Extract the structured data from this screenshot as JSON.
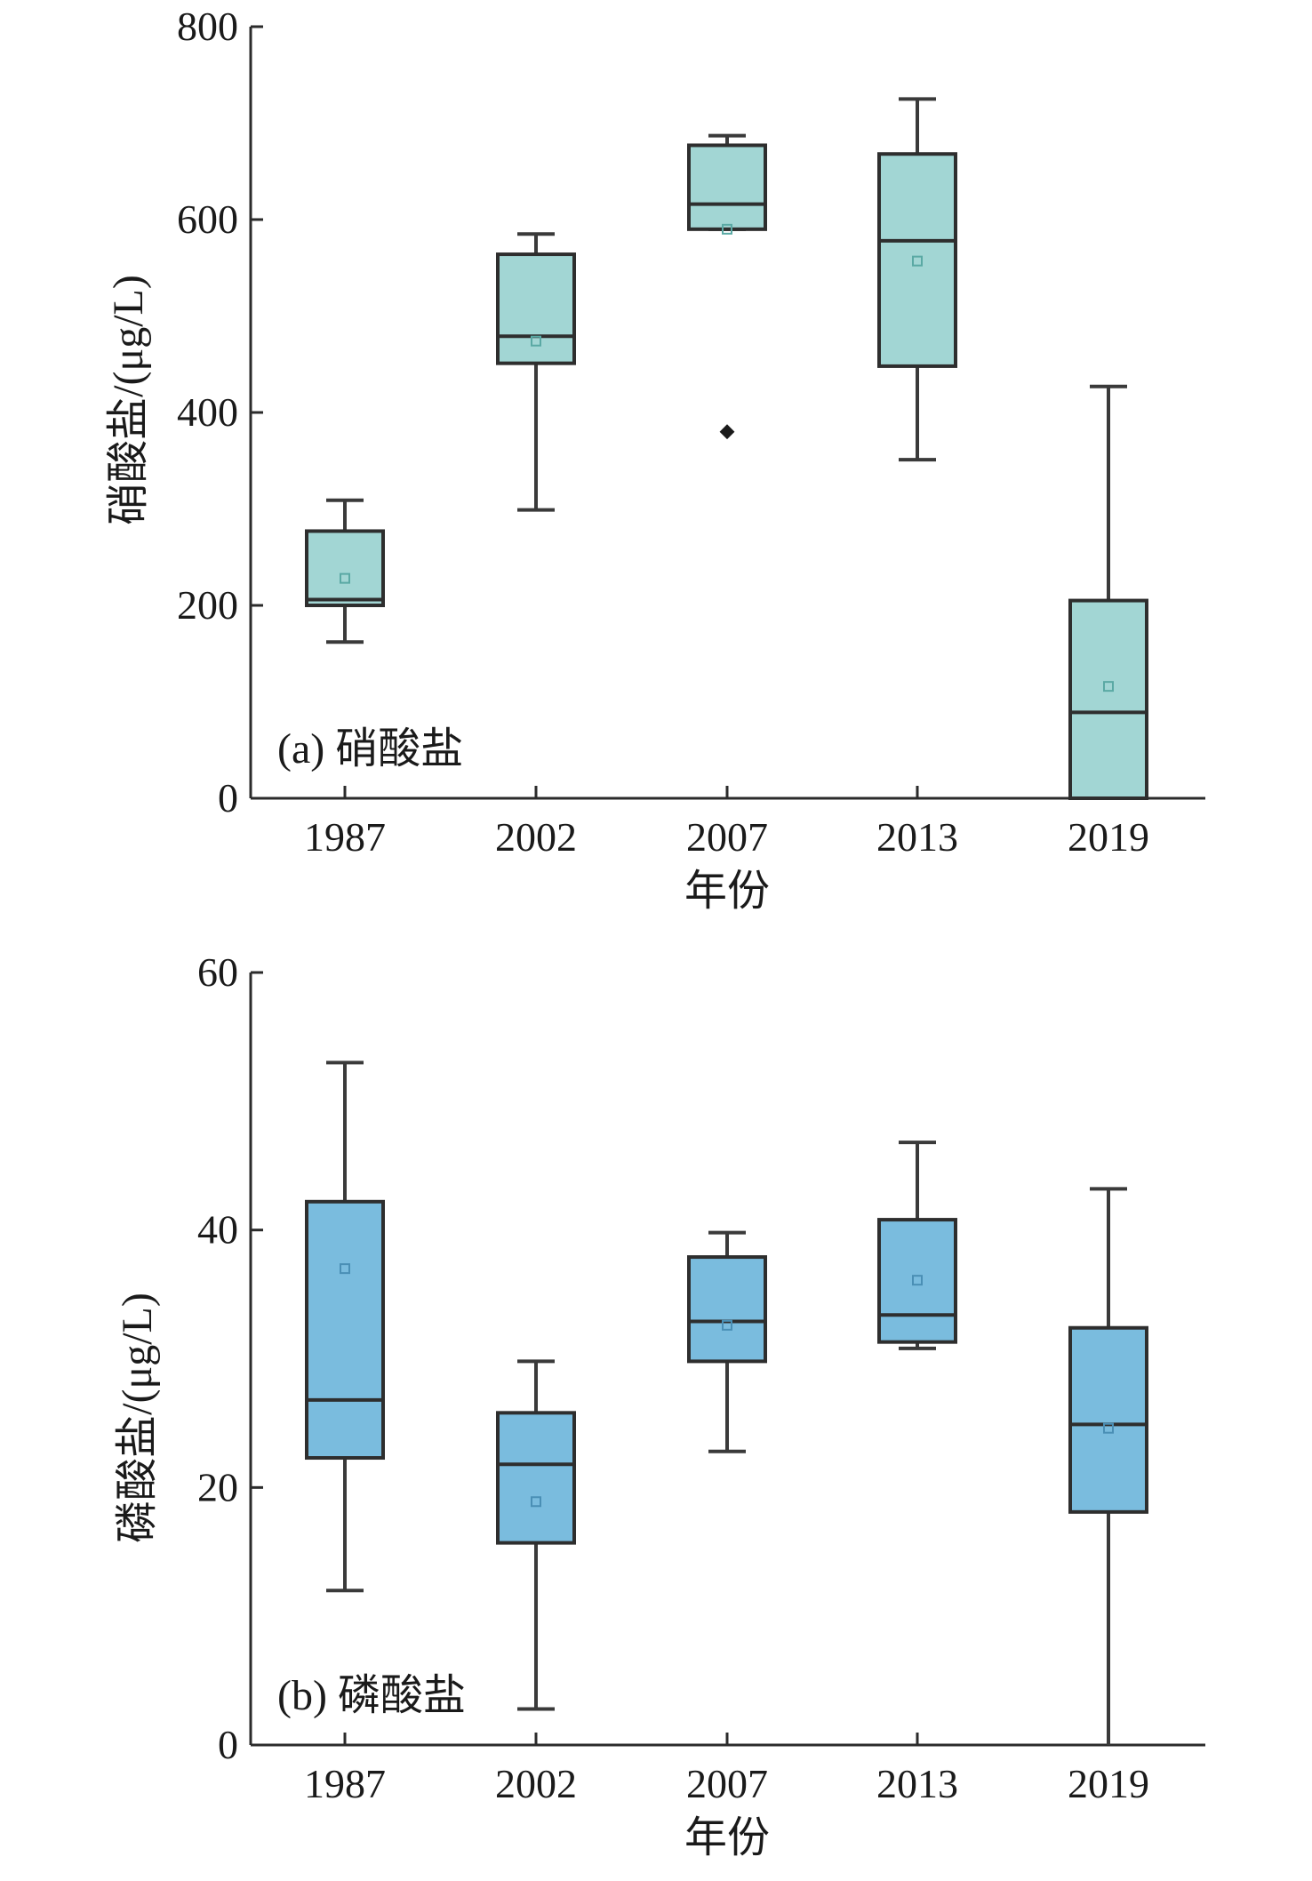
{
  "chart_data": [
    {
      "type": "box",
      "panel_label": "(a) 硝酸盐",
      "xlabel": "年份",
      "ylabel": "硝酸盐/(μg/L)",
      "ylim": [
        0,
        800
      ],
      "yticks": [
        0,
        200,
        400,
        600,
        800
      ],
      "categories": [
        "1987",
        "2002",
        "2007",
        "2013",
        "2019"
      ],
      "box_color": "#a2d6d4",
      "mean_color": "#5aa9a4",
      "boxes": [
        {
          "category": "1987",
          "min": 162,
          "q1": 200,
          "median": 206,
          "q3": 277,
          "max": 309,
          "mean": 228,
          "outliers": []
        },
        {
          "category": "2002",
          "min": 299,
          "q1": 451,
          "median": 479,
          "q3": 564,
          "max": 585,
          "mean": 474,
          "outliers": []
        },
        {
          "category": "2007",
          "min": 590,
          "q1": 590,
          "median": 616,
          "q3": 677,
          "max": 687,
          "mean": 590,
          "outliers": [
            380
          ]
        },
        {
          "category": "2013",
          "min": 351,
          "q1": 448,
          "median": 578,
          "q3": 668,
          "max": 725,
          "mean": 557,
          "outliers": []
        },
        {
          "category": "2019",
          "min": 0,
          "q1": 0,
          "median": 89,
          "q3": 205,
          "max": 427,
          "mean": 116,
          "outliers": []
        }
      ]
    },
    {
      "type": "box",
      "panel_label": "(b) 磷酸盐",
      "xlabel": "年份",
      "ylabel": "磷酸盐/(μg/L)",
      "ylim": [
        0,
        60
      ],
      "yticks": [
        0,
        20,
        40,
        60
      ],
      "categories": [
        "1987",
        "2002",
        "2007",
        "2013",
        "2019"
      ],
      "box_color": "#7abcde",
      "mean_color": "#4a8fb5",
      "boxes": [
        {
          "category": "1987",
          "min": 12,
          "q1": 22.3,
          "median": 26.8,
          "q3": 42.2,
          "max": 53,
          "mean": 37,
          "outliers": []
        },
        {
          "category": "2002",
          "min": 2.8,
          "q1": 15.7,
          "median": 21.8,
          "q3": 25.8,
          "max": 29.8,
          "mean": 18.9,
          "outliers": []
        },
        {
          "category": "2007",
          "min": 22.8,
          "q1": 29.8,
          "median": 32.9,
          "q3": 37.9,
          "max": 39.8,
          "mean": 32.6,
          "outliers": []
        },
        {
          "category": "2013",
          "min": 30.8,
          "q1": 31.3,
          "median": 33.4,
          "q3": 40.8,
          "max": 46.8,
          "mean": 36.1,
          "outliers": []
        },
        {
          "category": "2019",
          "min": 0,
          "q1": 18.1,
          "median": 24.9,
          "q3": 32.4,
          "max": 43.2,
          "mean": 24.6,
          "outliers": []
        }
      ]
    }
  ]
}
